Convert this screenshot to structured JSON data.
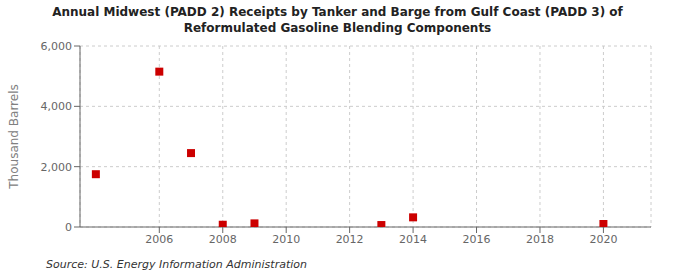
{
  "chart_data": {
    "type": "scatter",
    "title": "Annual Midwest (PADD 2) Receipts by Tanker and Barge from Gulf Coast (PADD 3) of\nReformulated Gasoline Blending Components",
    "ylabel": "Thousand Barrels",
    "source": "Source: U.S. Energy Information Administration",
    "x": [
      2004,
      2006,
      2007,
      2008,
      2009,
      2013,
      2014,
      2020
    ],
    "values": [
      1750,
      5150,
      2450,
      75,
      120,
      65,
      320,
      100
    ],
    "color": "#cc0000",
    "marker": "square",
    "xlim": [
      2003.5,
      2021.5
    ],
    "xticks": [
      2006,
      2008,
      2010,
      2012,
      2014,
      2016,
      2018,
      2020
    ],
    "ylim": [
      0,
      6000
    ],
    "yticks": [
      0,
      {
        "value": 2000,
        "label": "2,000"
      },
      {
        "value": 4000,
        "label": "4,000"
      },
      {
        "value": 6000,
        "label": "6,000"
      }
    ],
    "grid": true
  }
}
